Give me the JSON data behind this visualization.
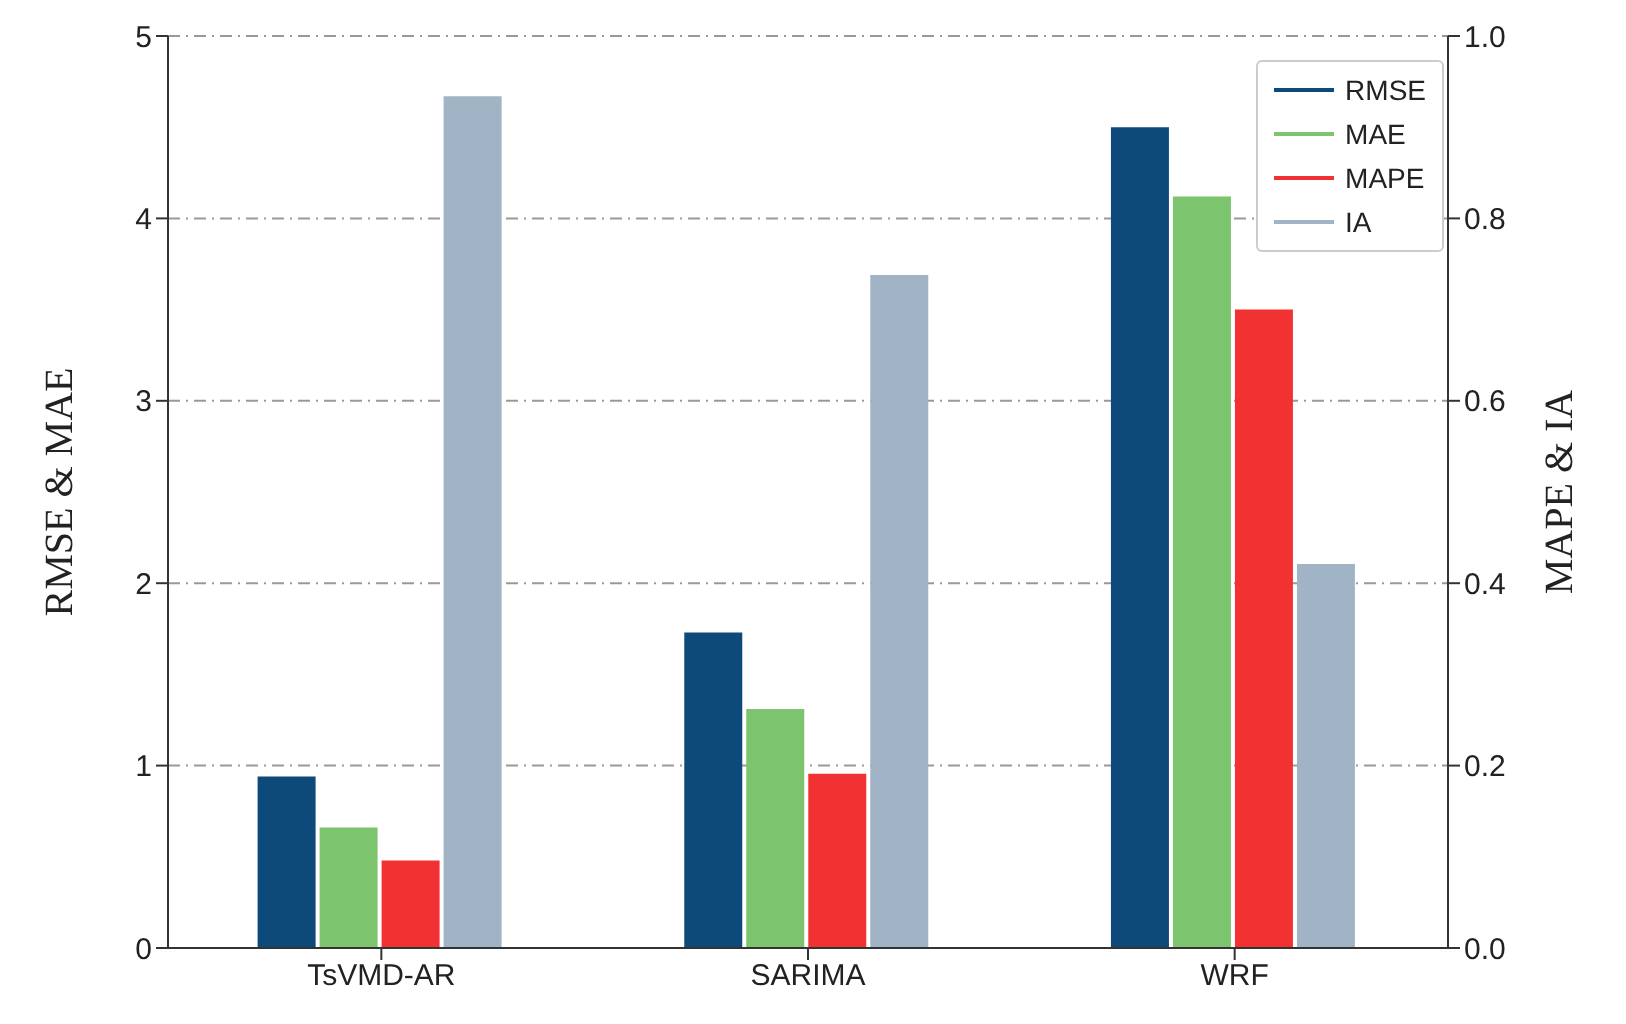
{
  "chart_data": {
    "type": "bar",
    "categories": [
      "TsVMD-AR",
      "SARIMA",
      "WRF"
    ],
    "ylabel": "RMSE & MAE",
    "y2label": "MAPE & IA",
    "ylim": [
      0,
      5
    ],
    "yticks": [
      0,
      1,
      2,
      3,
      4,
      5
    ],
    "y2lim": [
      0,
      1
    ],
    "y2ticks": [
      {
        "value": 0,
        "label": "0.0"
      },
      0.2,
      0.4,
      0.6,
      0.8,
      {
        "value": 1,
        "label": "1.0"
      }
    ],
    "grid": "y",
    "legend": "top right",
    "series": [
      {
        "name": "RMSE",
        "color": "#0d4a7a",
        "values": [
          0.94,
          1.73,
          4.5
        ]
      },
      {
        "name": "MAE",
        "color": "#7dc46f",
        "values": [
          0.66,
          1.31,
          4.12
        ]
      },
      {
        "name": "MAPE",
        "color": "#f23232",
        "values": [
          0.096,
          0.191,
          0.7
        ],
        "axis": "y2"
      },
      {
        "name": "IA",
        "color": "#a0b4c6",
        "values": [
          0.934,
          0.738,
          0.421
        ],
        "axis": "y2"
      }
    ]
  }
}
